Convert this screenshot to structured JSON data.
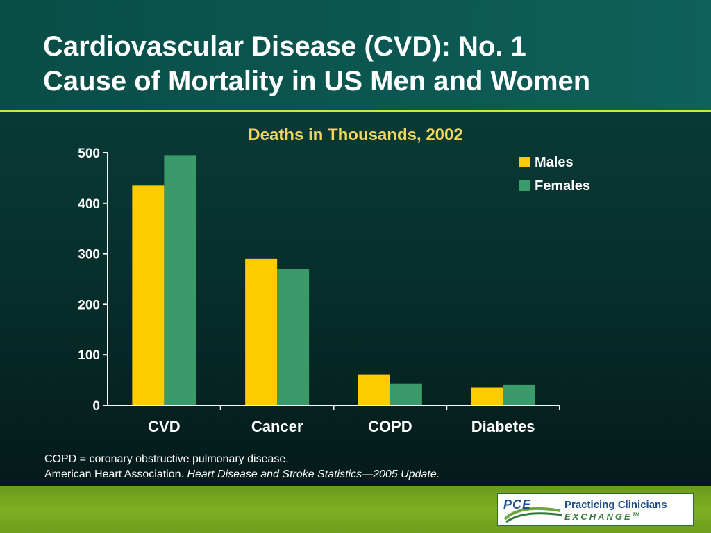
{
  "slide": {
    "title_line1": "Cardiovascular Disease (CVD): No. 1",
    "title_line2": "Cause of Mortality in US Men and Women"
  },
  "chart_data": {
    "type": "bar",
    "title": "Deaths in Thousands, 2002",
    "categories": [
      "CVD",
      "Cancer",
      "COPD",
      "Diabetes"
    ],
    "series": [
      {
        "name": "Males",
        "values": [
          435,
          290,
          61,
          35
        ],
        "color": "#ffcc00"
      },
      {
        "name": "Females",
        "values": [
          494,
          270,
          43,
          40
        ],
        "color": "#3a9a6a"
      }
    ],
    "ylim": [
      0,
      500
    ],
    "yticks": [
      0,
      100,
      200,
      300,
      400,
      500
    ],
    "xlabel": "",
    "ylabel": "",
    "grid": false,
    "legend_position": "top-right"
  },
  "footnote": {
    "line1": "COPD = coronary obstructive pulmonary disease.",
    "line2_source": "American Heart Association.",
    "line2_title": "Heart Disease and Stroke Statistics—2005 Update."
  },
  "logo": {
    "abbr": "PCE",
    "line1": "Practicing Clinicians",
    "line2": "EXCHANGE",
    "tm": "TM"
  },
  "colors": {
    "title_text": "#ffffff",
    "chart_title": "#f3d65c",
    "header_rule": "#d8e04a",
    "footer_band": "#7fae22"
  }
}
